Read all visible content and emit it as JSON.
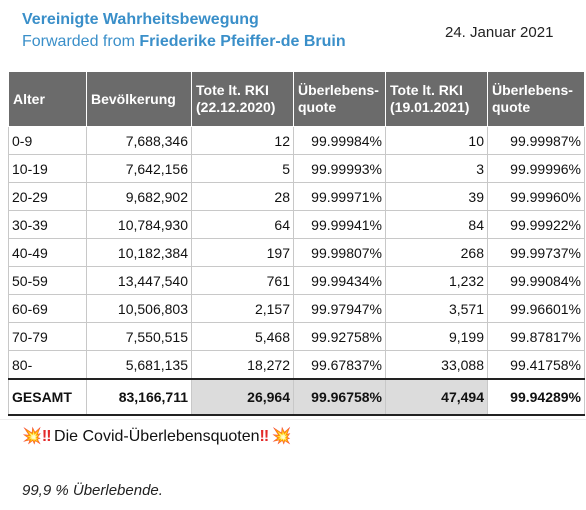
{
  "post": {
    "channel": "Vereinigte Wahrheitsbewegung",
    "forwarded_prefix": "Forwarded from",
    "forwarded_from": "Friederike Pfeiffer-de Bruin",
    "date": "24. Januar 2021",
    "caption_text": "Die Covid-Überlebensquoten",
    "note": "99,9 % Überlebende."
  },
  "table": {
    "headers": [
      "Alter",
      "Bevölkerung",
      "Tote lt. RKI (22.12.2020)",
      "Überlebens-quote",
      "Tote lt. RKI (19.01.2021)",
      "Überlebens-quote"
    ],
    "rows": [
      [
        "0-9",
        "7,688,346",
        "12",
        "99.99984%",
        "10",
        "99.99987%"
      ],
      [
        "10-19",
        "7,642,156",
        "5",
        "99.99993%",
        "3",
        "99.99996%"
      ],
      [
        "20-29",
        "9,682,902",
        "28",
        "99.99971%",
        "39",
        "99.99960%"
      ],
      [
        "30-39",
        "10,784,930",
        "64",
        "99.99941%",
        "84",
        "99.99922%"
      ],
      [
        "40-49",
        "10,182,384",
        "197",
        "99.99807%",
        "268",
        "99.99737%"
      ],
      [
        "50-59",
        "13,447,540",
        "761",
        "99.99434%",
        "1,232",
        "99.99084%"
      ],
      [
        "60-69",
        "10,506,803",
        "2,157",
        "99.97947%",
        "3,571",
        "99.96601%"
      ],
      [
        "70-79",
        "7,550,515",
        "5,468",
        "99.92758%",
        "9,199",
        "99.87817%"
      ],
      [
        "80-",
        "5,681,135",
        "18,272",
        "99.67837%",
        "33,088",
        "99.41758%"
      ]
    ],
    "total": [
      "GESAMT",
      "83,166,711",
      "26,964",
      "99.96758%",
      "47,494",
      "99.94289%"
    ]
  }
}
